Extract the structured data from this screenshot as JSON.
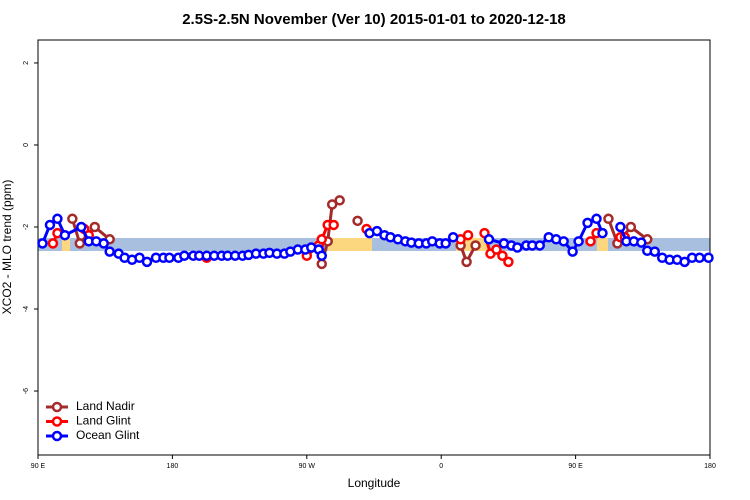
{
  "chart_data": {
    "type": "line",
    "title": "2.5S-2.5N November (Ver 10)   2015-01-01 to 2020-12-18",
    "x_label": "Longitude",
    "y_label": "XCO2 - MLO trend (ppm)",
    "xlim": [
      90,
      540
    ],
    "xticks": [
      {
        "value": 90,
        "label": "90 E"
      },
      180,
      {
        "value": 270,
        "label": "90 W"
      },
      {
        "value": 360,
        "label": "0"
      },
      {
        "value": 450,
        "label": "90 E"
      },
      {
        "value": 540,
        "label": "180"
      }
    ],
    "ylim": [
      -7.56,
      2.56
    ],
    "yticks": [
      2,
      0,
      -2,
      -4,
      -6
    ],
    "legend": "bottom-left",
    "series": [
      {
        "name": "Land Nadir",
        "color": "#a52a2a",
        "x": [
          113,
          118,
          128,
          138,
          200,
          280,
          284,
          287,
          292,
          298,
          304,
          340,
          373,
          377,
          383,
          430,
          472,
          478,
          487,
          498
        ],
        "values": [
          -1.8,
          -2.4,
          -2.0,
          -2.3,
          null,
          -2.9,
          -2.35,
          -1.45,
          -1.35,
          null,
          -1.85,
          null,
          -2.45,
          -2.85,
          -2.45,
          null,
          -1.8,
          -2.4,
          -2.0,
          -2.3
        ]
      },
      {
        "name": "Land Glint",
        "color": "#ff0000",
        "x": [
          100,
          103,
          112,
          121,
          124,
          160,
          203,
          240,
          270,
          278,
          280,
          284,
          288,
          300,
          310,
          340,
          373,
          378,
          384,
          389,
          393,
          397,
          401,
          405,
          430,
          460,
          464,
          472,
          480,
          483
        ],
        "values": [
          -2.4,
          -2.15,
          null,
          -2.05,
          -2.2,
          null,
          -2.75,
          null,
          -2.7,
          -2.45,
          -2.3,
          -1.95,
          -1.95,
          null,
          -2.05,
          null,
          -2.3,
          -2.2,
          null,
          -2.15,
          -2.65,
          -2.55,
          -2.7,
          -2.85,
          null,
          -2.35,
          -2.15,
          null,
          -2.25,
          -2.25
        ]
      },
      {
        "name": "Ocean Glint",
        "color": "#0000ff",
        "x": [
          93,
          98,
          103,
          108,
          119,
          124,
          129,
          134,
          138,
          144,
          148,
          153,
          158,
          163,
          169,
          174,
          178,
          184,
          188,
          194,
          198,
          203,
          208,
          213,
          217,
          222,
          227,
          231,
          236,
          241,
          245,
          250,
          255,
          259,
          264,
          269,
          273,
          278,
          280,
          300,
          312,
          317,
          322,
          326,
          331,
          336,
          340,
          345,
          350,
          354,
          359,
          363,
          368,
          380,
          392,
          402,
          407,
          411,
          417,
          421,
          426,
          432,
          437,
          442,
          448,
          452,
          458,
          464,
          468,
          472,
          480,
          484,
          489,
          494,
          498,
          503,
          508,
          513,
          518,
          523,
          528,
          533,
          539
        ],
        "values": [
          -2.4,
          -1.95,
          -1.8,
          -2.2,
          -2.0,
          -2.35,
          -2.35,
          -2.4,
          -2.6,
          -2.65,
          -2.75,
          -2.8,
          -2.75,
          -2.85,
          -2.75,
          -2.75,
          -2.75,
          -2.75,
          -2.7,
          -2.7,
          -2.7,
          -2.7,
          -2.7,
          -2.7,
          -2.7,
          -2.7,
          -2.7,
          -2.68,
          -2.65,
          -2.65,
          -2.63,
          -2.65,
          -2.65,
          -2.6,
          -2.55,
          -2.55,
          -2.5,
          -2.55,
          -2.7,
          null,
          -2.15,
          -2.1,
          -2.2,
          -2.25,
          -2.3,
          -2.35,
          -2.38,
          -2.4,
          -2.4,
          -2.35,
          -2.4,
          -2.4,
          -2.25,
          null,
          -2.3,
          -2.4,
          -2.45,
          -2.5,
          -2.45,
          -2.45,
          -2.45,
          -2.25,
          -2.3,
          -2.35,
          -2.6,
          -2.35,
          -1.9,
          -1.8,
          -2.15,
          null,
          -2.0,
          -2.35,
          -2.35,
          -2.38,
          -2.58,
          -2.6,
          -2.75,
          -2.8,
          -2.8,
          -2.85,
          -2.75,
          -2.75,
          -2.75
        ]
      }
    ]
  }
}
